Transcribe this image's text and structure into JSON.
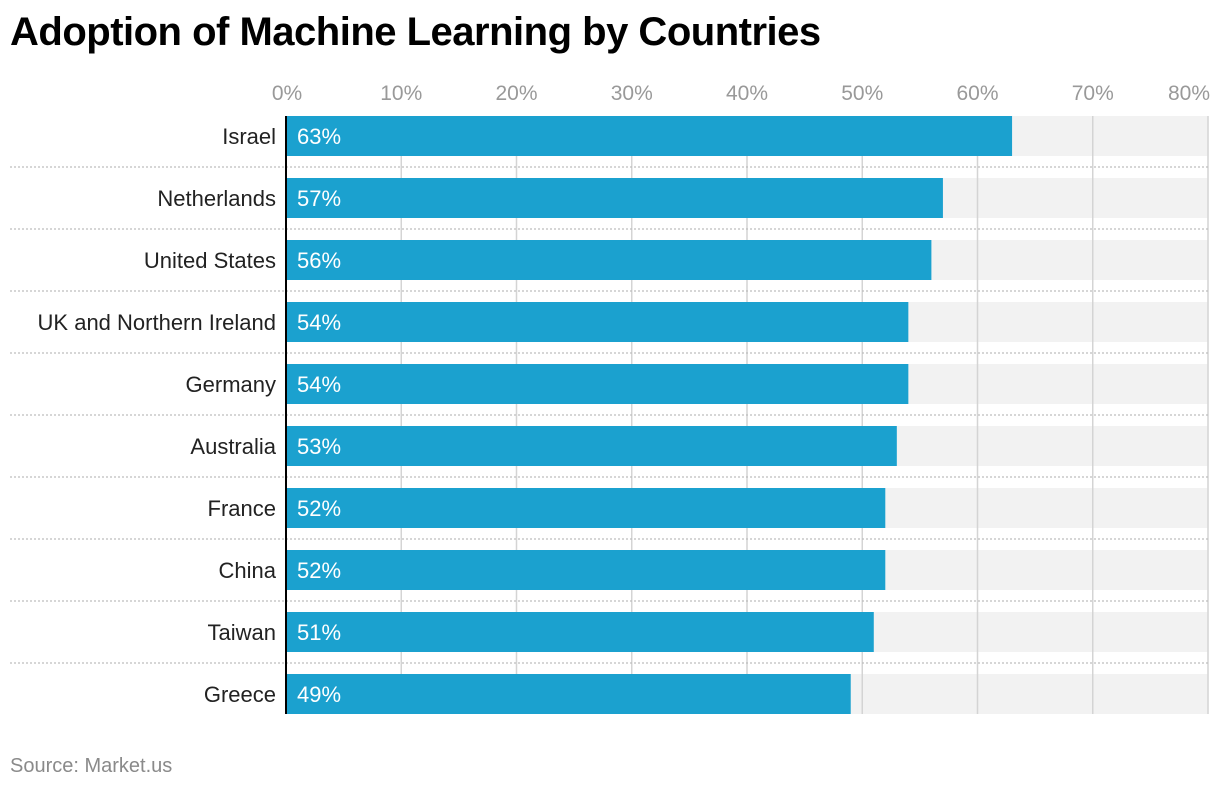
{
  "colors": {
    "bar": "#1ba1cf",
    "track": "#f2f2f2",
    "grid": "#d4d4d4",
    "tick_label": "#999999",
    "category_label": "#222222",
    "value_label": "#ffffff",
    "separator": "#bdbdbd",
    "axis": "#000000"
  },
  "chart_data": {
    "type": "bar",
    "orientation": "horizontal",
    "title": "Adoption of Machine Learning by Countries",
    "source": "Source: Market.us",
    "xlim": [
      0,
      80
    ],
    "ticks": [
      0,
      10,
      20,
      30,
      40,
      50,
      60,
      70,
      80
    ],
    "tick_labels": [
      "0%",
      "10%",
      "20%",
      "30%",
      "40%",
      "50%",
      "60%",
      "70%",
      "80%"
    ],
    "categories": [
      "Israel",
      "Netherlands",
      "United States",
      "UK and Northern Ireland",
      "Germany",
      "Australia",
      "France",
      "China",
      "Taiwan",
      "Greece"
    ],
    "values": [
      63,
      57,
      56,
      54,
      54,
      53,
      52,
      52,
      51,
      49
    ],
    "value_labels": [
      "63%",
      "57%",
      "56%",
      "54%",
      "54%",
      "53%",
      "52%",
      "52%",
      "51%",
      "49%"
    ],
    "xlabel": "",
    "ylabel": "",
    "grid": true,
    "legend": "none"
  }
}
